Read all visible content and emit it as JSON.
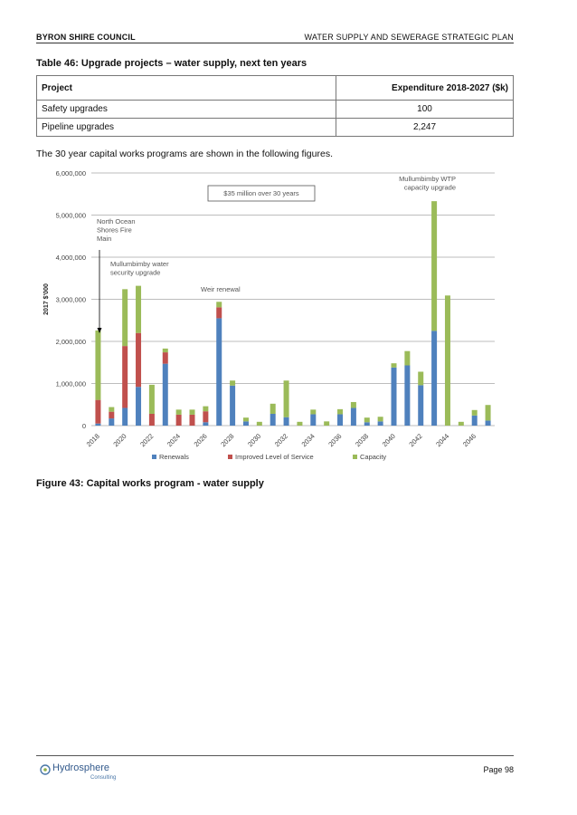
{
  "header": {
    "left": "BYRON SHIRE COUNCIL",
    "right": "WATER SUPPLY AND SEWERAGE STRATEGIC PLAN"
  },
  "table": {
    "caption": "Table 46: Upgrade projects – water supply, next ten years",
    "col_project": "Project",
    "col_expenditure": "Expenditure 2018-2027 ($k)",
    "rows": [
      {
        "project": "Safety upgrades",
        "value": "100"
      },
      {
        "project": "Pipeline upgrades",
        "value": "2,247"
      }
    ]
  },
  "paragraph": "The 30 year capital works programs are shown in the following figures.",
  "chart_data": {
    "type": "bar",
    "stacked": true,
    "ylabel": "2017 $'000",
    "ylim": [
      0,
      6000000
    ],
    "yticks": [
      "0",
      "1,000,000",
      "2,000,000",
      "3,000,000",
      "4,000,000",
      "5,000,000",
      "6,000,000"
    ],
    "categories": [
      "2018",
      "2019",
      "2020",
      "2021",
      "2022",
      "2023",
      "2024",
      "2025",
      "2026",
      "2027",
      "2028",
      "2029",
      "2030",
      "2031",
      "2032",
      "2033",
      "2034",
      "2035",
      "2036",
      "2037",
      "2038",
      "2039",
      "2040",
      "2041",
      "2042",
      "2043",
      "2044",
      "2045",
      "2046",
      "2047"
    ],
    "xtick_labels": [
      "2018",
      "2020",
      "2022",
      "2024",
      "2026",
      "2028",
      "2030",
      "2032",
      "2034",
      "2036",
      "2038",
      "2040",
      "2042",
      "2044",
      "2046"
    ],
    "grid": true,
    "legend_position": "bottom",
    "series": [
      {
        "name": "Renewals",
        "color": "#4f81bd",
        "values": [
          50000,
          170000,
          420000,
          920000,
          0,
          1470000,
          0,
          0,
          80000,
          2550000,
          950000,
          100000,
          0,
          280000,
          200000,
          0,
          270000,
          0,
          270000,
          420000,
          80000,
          100000,
          1380000,
          1430000,
          960000,
          2250000,
          0,
          0,
          240000,
          120000
        ]
      },
      {
        "name": "Improved Level of Service",
        "color": "#c0504d",
        "values": [
          560000,
          160000,
          1470000,
          1280000,
          280000,
          270000,
          260000,
          260000,
          260000,
          260000,
          0,
          0,
          0,
          0,
          0,
          0,
          0,
          0,
          0,
          0,
          0,
          0,
          0,
          0,
          0,
          0,
          0,
          0,
          0,
          0
        ]
      },
      {
        "name": "Capacity",
        "color": "#9bbb59",
        "values": [
          1650000,
          110000,
          1350000,
          1120000,
          690000,
          90000,
          120000,
          120000,
          120000,
          130000,
          120000,
          90000,
          90000,
          240000,
          870000,
          90000,
          110000,
          100000,
          120000,
          140000,
          110000,
          110000,
          100000,
          340000,
          320000,
          3080000,
          3090000,
          90000,
          130000,
          370000
        ]
      }
    ],
    "annotations": [
      "North Ocean Shores Fire Main",
      "Mullumbimby water security upgrade",
      "Weir renewal",
      "Mullumbimby WTP capacity upgrade"
    ],
    "callout_box": "$35 million over 30 years"
  },
  "figure_caption": "Figure 43: Capital works program - water supply",
  "footer": {
    "logo": "Hydrosphere",
    "logo_sub": "Consulting",
    "page": "Page 98"
  }
}
